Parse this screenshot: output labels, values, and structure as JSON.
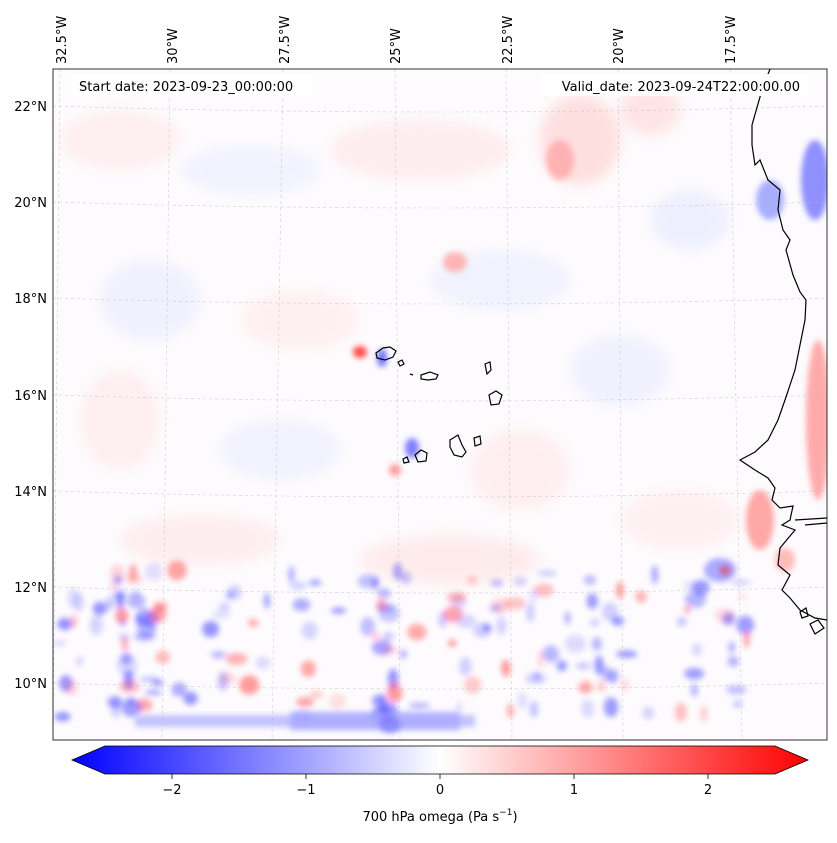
{
  "map": {
    "start_label": "Start date: 2023-09-23_00:00:00",
    "valid_label": "Valid_date: 2023-09-24T22:00:00.00",
    "lon_labels": [
      "32.5°W",
      "30°W",
      "27.5°W",
      "25°W",
      "22.5°W",
      "20°W",
      "17.5°W"
    ],
    "lat_labels": [
      "22°N",
      "20°N",
      "18°N",
      "16°N",
      "14°N",
      "12°N",
      "10°N"
    ],
    "field_colors": {
      "negative": "#0000ff",
      "zero": "#ffffff",
      "positive": "#ff0000"
    },
    "coastline_color": "#000000"
  },
  "colorbar": {
    "ticks": [
      {
        "value": -2,
        "label": "−2"
      },
      {
        "value": -1,
        "label": "−1"
      },
      {
        "value": 0,
        "label": "0"
      },
      {
        "value": 1,
        "label": "1"
      },
      {
        "value": 2,
        "label": "2"
      }
    ],
    "range": [
      -2.5,
      2.5
    ],
    "label_main": "700 hPa omega (Pa s",
    "label_exp": "−1",
    "label_close": ")"
  }
}
